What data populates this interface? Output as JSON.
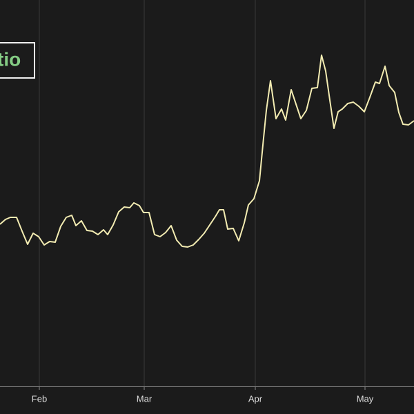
{
  "chart_data": {
    "type": "line",
    "title": "tio",
    "x": [
      0,
      8,
      15,
      24,
      32,
      40,
      48,
      56,
      64,
      72,
      80,
      88,
      96,
      104,
      110,
      118,
      126,
      134,
      142,
      150,
      156,
      164,
      172,
      180,
      188,
      194,
      202,
      208,
      216,
      224,
      232,
      240,
      248,
      256,
      264,
      272,
      280,
      288,
      296,
      304,
      312,
      318,
      324,
      330,
      338,
      346,
      354,
      360,
      368,
      376,
      382,
      386,
      392,
      400,
      408,
      414,
      422,
      428,
      436,
      444,
      452,
      460,
      466,
      472,
      478,
      484,
      490,
      496,
      504,
      512,
      520,
      528,
      536,
      544,
      550,
      558,
      564,
      572,
      578,
      584,
      592,
      600
    ],
    "series": [
      {
        "color": "#f3ecb2",
        "values": [
          235,
          242,
          245,
          245,
          225,
          206,
          222,
          217,
          205,
          210,
          209,
          232,
          245,
          248,
          233,
          240,
          226,
          225,
          220,
          227,
          220,
          234,
          253,
          260,
          259,
          266,
          262,
          252,
          252,
          220,
          217,
          223,
          233,
          212,
          203,
          202,
          205,
          213,
          222,
          234,
          246,
          256,
          256,
          228,
          229,
          211,
          237,
          263,
          272,
          298,
          360,
          400,
          443,
          388,
          402,
          386,
          430,
          412,
          388,
          400,
          432,
          433,
          480,
          457,
          415,
          374,
          398,
          402,
          410,
          412,
          406,
          398,
          419,
          441,
          439,
          464,
          436,
          426,
          397,
          380,
          379,
          385
        ]
      }
    ],
    "xlim": [
      0,
      600
    ],
    "ylim": [
      0,
      560
    ],
    "xticks": [
      {
        "value": 57,
        "label": "Feb"
      },
      {
        "value": 209,
        "label": "Mar"
      },
      {
        "value": 370,
        "label": "Apr"
      },
      {
        "value": 529,
        "label": "May"
      }
    ],
    "grid": true
  }
}
